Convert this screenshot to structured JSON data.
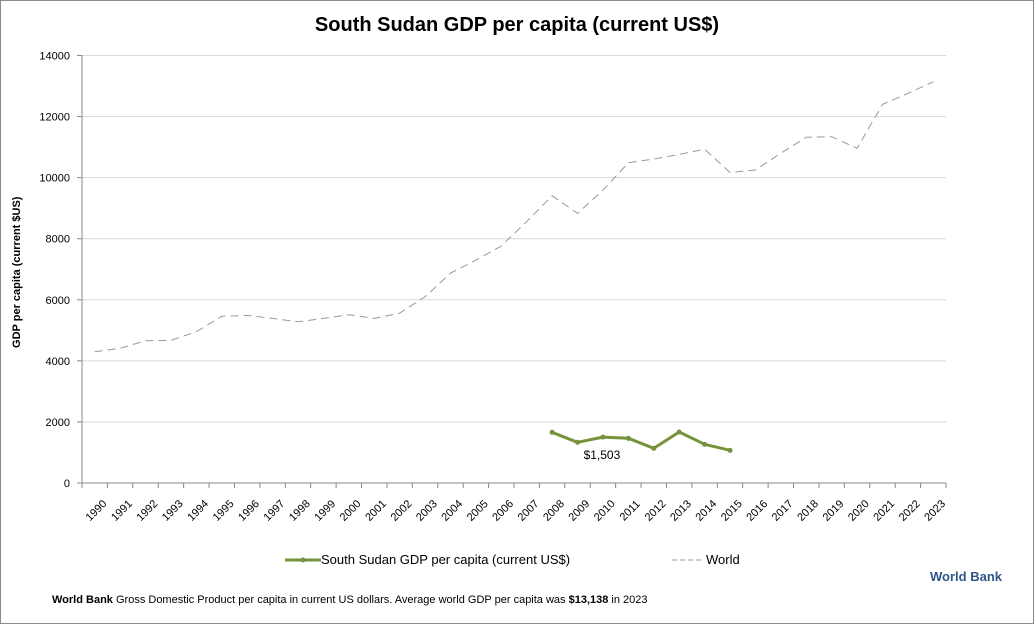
{
  "chart_data": {
    "type": "line",
    "title": "South Sudan GDP per capita (current US$)",
    "ylabel": "GDP per capita (current $US)",
    "xlabel": "",
    "ylim": [
      0,
      14000
    ],
    "yticks": [
      0,
      2000,
      4000,
      6000,
      8000,
      10000,
      12000,
      14000
    ],
    "grid": true,
    "legend_placement": "bottom",
    "categories": [
      "1990",
      "1991",
      "1992",
      "1993",
      "1994",
      "1995",
      "1996",
      "1997",
      "1998",
      "1999",
      "2000",
      "2001",
      "2002",
      "2003",
      "2004",
      "2005",
      "2006",
      "2007",
      "2008",
      "2009",
      "2010",
      "2011",
      "2012",
      "2013",
      "2014",
      "2015",
      "2016",
      "2017",
      "2018",
      "2019",
      "2020",
      "2021",
      "2022",
      "2023"
    ],
    "series": [
      {
        "name": "South Sudan GDP per capita (current US$)",
        "color": "#76933c",
        "style": "solid-markers",
        "values": [
          null,
          null,
          null,
          null,
          null,
          null,
          null,
          null,
          null,
          null,
          null,
          null,
          null,
          null,
          null,
          null,
          null,
          null,
          1660,
          1333,
          1503,
          1463,
          1135,
          1670,
          1266,
          1070,
          null,
          null,
          null,
          null,
          null,
          null,
          null,
          null
        ]
      },
      {
        "name": "World",
        "color": "#999999",
        "style": "dashed",
        "values": [
          4300,
          4410,
          4660,
          4670,
          4955,
          5460,
          5490,
          5390,
          5280,
          5390,
          5510,
          5390,
          5560,
          6100,
          6870,
          7300,
          7760,
          8560,
          9410,
          8830,
          9590,
          10490,
          10610,
          10760,
          10930,
          10170,
          10250,
          10800,
          11320,
          11340,
          10960,
          12400,
          12760,
          13138
        ]
      }
    ],
    "annotations": [
      {
        "text": "$1,503",
        "category": "2010",
        "series": "South Sudan GDP per capita (current US$)"
      }
    ]
  },
  "brand": "World Bank",
  "footer": {
    "source": "World Bank",
    "text": " Gross Domestic Product per capita in current US dollars.  Average world GDP per capita was ",
    "highlight": "$13,138",
    "suffix": " in 2023"
  }
}
